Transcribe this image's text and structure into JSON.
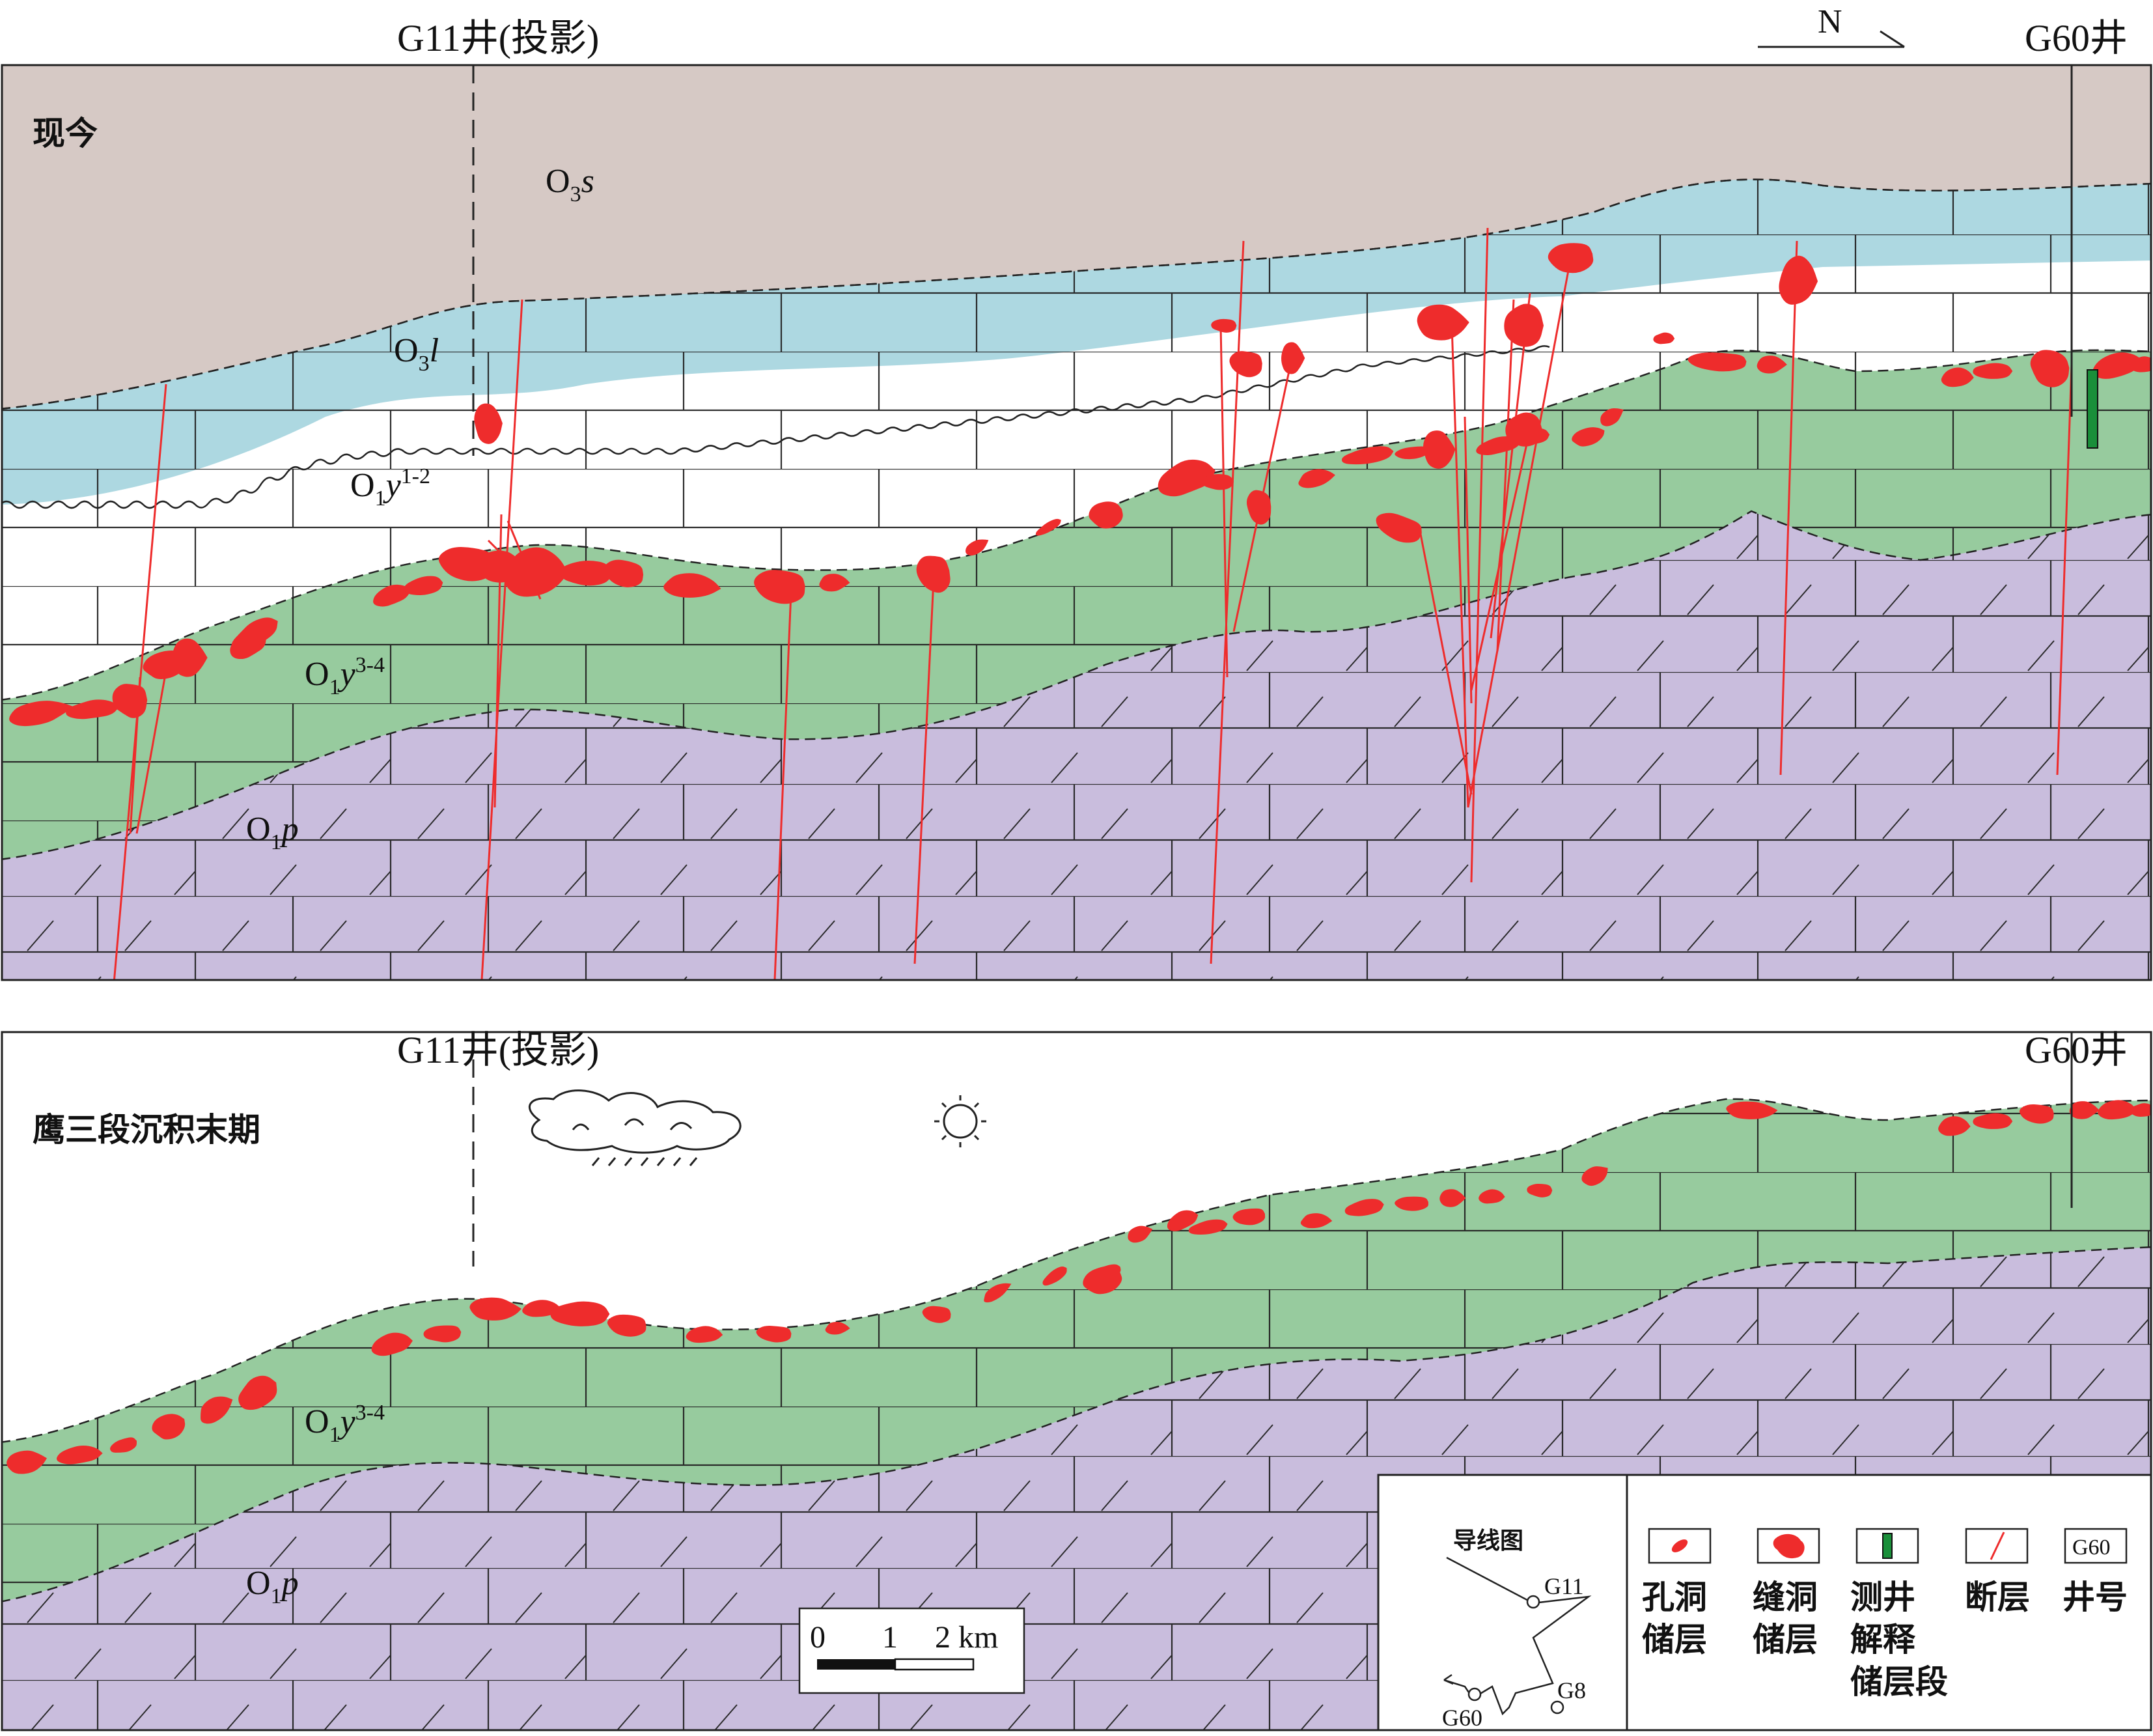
{
  "colors": {
    "o3s": "#d6c9c5",
    "o3l": "#add8e1",
    "o1y12": "#ffffff",
    "o1y34": "#97cb9e",
    "o1p": "#c9bddd",
    "reservoir": "#ee2c2c",
    "fault": "#ee2c2c",
    "well_log": "#1a8f3a",
    "line": "#222222"
  },
  "top_panel": {
    "stage": "现今",
    "well_left": "G11井(投影)",
    "well_right": "G60井",
    "north": "N",
    "layers": {
      "o3s": {
        "main": "O",
        "sub": "3",
        "it": "s",
        "sup": ""
      },
      "o3l": {
        "main": "O",
        "sub": "3",
        "it": "l",
        "sup": ""
      },
      "o1y12": {
        "main": "O",
        "sub": "1",
        "it": "y",
        "sup": "1-2"
      },
      "o1y34": {
        "main": "O",
        "sub": "1",
        "it": "y",
        "sup": "3-4"
      },
      "o1p": {
        "main": "O",
        "sub": "1",
        "it": "p",
        "sup": ""
      }
    }
  },
  "bottom_panel": {
    "stage": "鹰三段沉积末期",
    "well_left": "G11井(投影)",
    "well_right": "G60井",
    "layers": {
      "o1y34": {
        "main": "O",
        "sub": "1",
        "it": "y",
        "sup": "3-4"
      },
      "o1p": {
        "main": "O",
        "sub": "1",
        "it": "p",
        "sup": ""
      }
    },
    "weather_icons": [
      "cloud-rain-icon",
      "sun-icon"
    ]
  },
  "scale_bar": {
    "ticks": [
      "0",
      "1",
      "2 km"
    ]
  },
  "traverse_map": {
    "title": "导线图",
    "wells": [
      "G11",
      "G8",
      "G60"
    ]
  },
  "legend": [
    {
      "id": "vug",
      "icon": "vug-reservoir-icon",
      "lines": [
        "孔洞",
        "储层"
      ]
    },
    {
      "id": "fracture_vug",
      "icon": "fracture-vug-reservoir-icon",
      "lines": [
        "缝洞",
        "储层"
      ]
    },
    {
      "id": "log",
      "icon": "log-interpreted-interval-icon",
      "lines": [
        "测井",
        "解释",
        "储层段"
      ]
    },
    {
      "id": "fault",
      "icon": "fault-icon",
      "lines": [
        "断层"
      ]
    },
    {
      "id": "well_no",
      "icon": "well-number-icon",
      "box": "G60",
      "lines": [
        "井号"
      ]
    }
  ]
}
